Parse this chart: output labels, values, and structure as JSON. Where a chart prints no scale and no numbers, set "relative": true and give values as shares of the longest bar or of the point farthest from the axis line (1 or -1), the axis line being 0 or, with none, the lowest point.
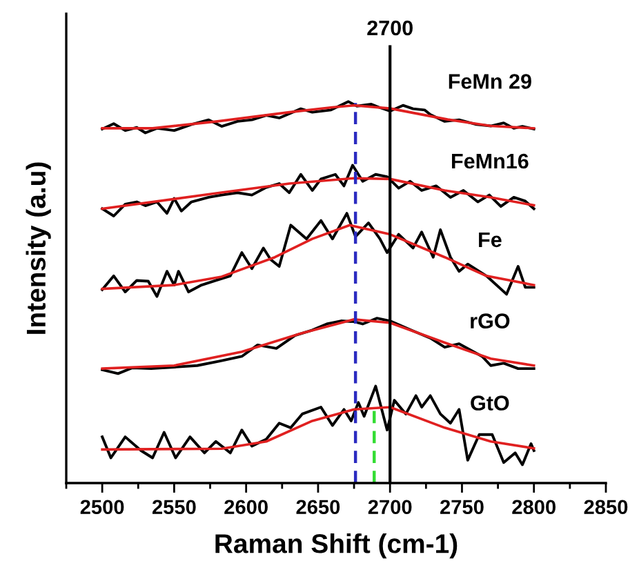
{
  "chart_data": {
    "type": "line",
    "relative": true,
    "xlabel": "Raman Shift (cm-1)",
    "ylabel": "Intensity (a.u)",
    "xlim": [
      2475,
      2850
    ],
    "xticks": [
      2500,
      2550,
      2600,
      2650,
      2700,
      2750,
      2800,
      2850
    ],
    "grid": false,
    "legend": false,
    "line_style": "solid",
    "marker": "none",
    "ref_lines": [
      {
        "axis": "x",
        "value": 2700,
        "label": "2700",
        "color": "#000000",
        "line_style": "solid"
      },
      {
        "axis": "x",
        "value": 2676,
        "color": "#2b2bc0",
        "line_style": "dashed"
      },
      {
        "axis": "x",
        "value": 2689,
        "color": "#33dd33",
        "line_style": "dashed"
      }
    ],
    "series": [
      {
        "name": "FeMn 29",
        "color": "#000000",
        "x": [
          2500,
          2508,
          2516,
          2524,
          2530,
          2538,
          2550,
          2562,
          2574,
          2583,
          2594,
          2604,
          2614,
          2623,
          2638,
          2646,
          2659,
          2671,
          2677,
          2687,
          2693,
          2700,
          2709,
          2716,
          2724,
          2728,
          2738,
          2748,
          2760,
          2770,
          2779,
          2786,
          2792,
          2800
        ],
        "values": [
          0.928,
          0.942,
          0.924,
          0.932,
          0.918,
          0.93,
          0.924,
          0.94,
          0.952,
          0.935,
          0.948,
          0.952,
          0.964,
          0.957,
          0.981,
          0.972,
          0.978,
          1.0,
          0.988,
          0.993,
          0.984,
          0.975,
          0.99,
          0.981,
          0.978,
          0.966,
          0.948,
          0.952,
          0.94,
          0.936,
          0.944,
          0.93,
          0.935,
          0.928
        ]
      },
      {
        "color": "#e02020",
        "x": [
          2500,
          2535,
          2580,
          2630,
          2660,
          2675,
          2700,
          2740,
          2770,
          2800
        ],
        "values": [
          0.93,
          0.93,
          0.948,
          0.972,
          0.985,
          0.99,
          0.982,
          0.953,
          0.936,
          0.93
        ]
      },
      {
        "name": "FeMn16",
        "color": "#000000",
        "x": [
          2500,
          2508,
          2516,
          2524,
          2530,
          2538,
          2545,
          2550,
          2555,
          2562,
          2574,
          2583,
          2594,
          2604,
          2614,
          2623,
          2630,
          2638,
          2646,
          2652,
          2662,
          2668,
          2674,
          2681,
          2690,
          2698,
          2706,
          2714,
          2722,
          2732,
          2742,
          2751,
          2761,
          2769,
          2777,
          2786,
          2794,
          2800
        ],
        "values": [
          0.719,
          0.7,
          0.731,
          0.737,
          0.727,
          0.737,
          0.707,
          0.746,
          0.713,
          0.737,
          0.749,
          0.755,
          0.761,
          0.755,
          0.775,
          0.785,
          0.761,
          0.809,
          0.767,
          0.797,
          0.809,
          0.779,
          0.833,
          0.791,
          0.809,
          0.803,
          0.773,
          0.791,
          0.767,
          0.779,
          0.749,
          0.767,
          0.737,
          0.755,
          0.725,
          0.749,
          0.739,
          0.719
        ]
      },
      {
        "color": "#e02020",
        "x": [
          2500,
          2582,
          2630,
          2675,
          2700,
          2738,
          2770,
          2800
        ],
        "values": [
          0.719,
          0.761,
          0.785,
          0.799,
          0.797,
          0.767,
          0.749,
          0.728
        ]
      },
      {
        "name": "Fe",
        "color": "#000000",
        "x": [
          2500,
          2508,
          2516,
          2524,
          2532,
          2538,
          2545,
          2550,
          2553,
          2560,
          2569,
          2579,
          2589,
          2597,
          2604,
          2612,
          2617,
          2623,
          2631,
          2642,
          2652,
          2660,
          2670,
          2676,
          2685,
          2693,
          2698,
          2706,
          2716,
          2722,
          2730,
          2735,
          2742,
          2748,
          2754,
          2767,
          2781,
          2789,
          2794,
          2800
        ],
        "values": [
          0.507,
          0.543,
          0.501,
          0.531,
          0.529,
          0.489,
          0.555,
          0.519,
          0.555,
          0.501,
          0.519,
          0.531,
          0.543,
          0.604,
          0.562,
          0.616,
          0.586,
          0.568,
          0.676,
          0.64,
          0.688,
          0.64,
          0.707,
          0.646,
          0.682,
          0.64,
          0.604,
          0.652,
          0.616,
          0.658,
          0.592,
          0.664,
          0.592,
          0.555,
          0.574,
          0.543,
          0.495,
          0.568,
          0.513,
          0.513
        ]
      },
      {
        "color": "#e02020",
        "x": [
          2500,
          2550,
          2583,
          2620,
          2646,
          2672,
          2700,
          2738,
          2767,
          2800
        ],
        "values": [
          0.509,
          0.519,
          0.541,
          0.592,
          0.64,
          0.676,
          0.652,
          0.592,
          0.543,
          0.519
        ]
      },
      {
        "name": "rGO",
        "color": "#000000",
        "x": [
          2500,
          2511,
          2521,
          2534,
          2550,
          2566,
          2582,
          2597,
          2608,
          2621,
          2634,
          2646,
          2656,
          2666,
          2675,
          2681,
          2691,
          2700,
          2716,
          2728,
          2738,
          2748,
          2764,
          2770,
          2779,
          2789,
          2800
        ],
        "values": [
          0.297,
          0.287,
          0.302,
          0.3,
          0.304,
          0.308,
          0.32,
          0.332,
          0.362,
          0.353,
          0.387,
          0.401,
          0.417,
          0.425,
          0.423,
          0.417,
          0.432,
          0.425,
          0.399,
          0.38,
          0.356,
          0.365,
          0.332,
          0.308,
          0.314,
          0.3,
          0.3
        ]
      },
      {
        "color": "#e02020",
        "x": [
          2500,
          2550,
          2597,
          2638,
          2675,
          2700,
          2738,
          2770,
          2800
        ],
        "values": [
          0.3,
          0.308,
          0.344,
          0.392,
          0.429,
          0.42,
          0.368,
          0.326,
          0.308
        ]
      },
      {
        "name": "GtO",
        "color": "#000000",
        "x": [
          2500,
          2506,
          2516,
          2527,
          2535,
          2543,
          2551,
          2561,
          2571,
          2579,
          2589,
          2597,
          2604,
          2614,
          2623,
          2631,
          2639,
          2652,
          2660,
          2668,
          2673,
          2678,
          2682,
          2690,
          2698,
          2703,
          2711,
          2718,
          2722,
          2728,
          2735,
          2742,
          2748,
          2754,
          2762,
          2771,
          2779,
          2787,
          2792,
          2798,
          2800
        ],
        "values": [
          0.121,
          0.066,
          0.121,
          0.085,
          0.066,
          0.133,
          0.066,
          0.121,
          0.079,
          0.109,
          0.079,
          0.139,
          0.097,
          0.115,
          0.157,
          0.145,
          0.181,
          0.199,
          0.151,
          0.193,
          0.163,
          0.211,
          0.175,
          0.254,
          0.139,
          0.217,
          0.181,
          0.229,
          0.199,
          0.229,
          0.181,
          0.157,
          0.193,
          0.06,
          0.127,
          0.127,
          0.054,
          0.079,
          0.048,
          0.103,
          0.085
        ]
      },
      {
        "color": "#e02020",
        "x": [
          2500,
          2583,
          2614,
          2646,
          2675,
          2700,
          2738,
          2770,
          2800
        ],
        "values": [
          0.088,
          0.09,
          0.109,
          0.163,
          0.193,
          0.199,
          0.145,
          0.109,
          0.091
        ]
      }
    ]
  }
}
